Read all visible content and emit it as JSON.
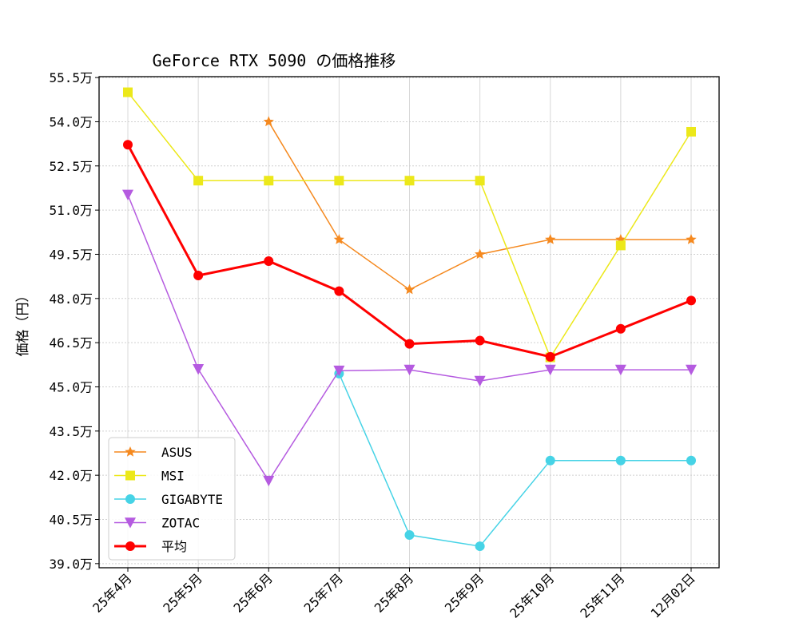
{
  "chart_data": {
    "type": "line",
    "title": "GeForce RTX 5090 の価格推移",
    "xlabel": "",
    "ylabel": "価格（円）",
    "categories": [
      "25年4月",
      "25年5月",
      "25年6月",
      "25年7月",
      "25年8月",
      "25年9月",
      "25年10月",
      "25年11月",
      "12月02日"
    ],
    "ylim": [
      38.86,
      55.53
    ],
    "yticks": [
      39.0,
      40.5,
      42.0,
      43.5,
      45.0,
      46.5,
      48.0,
      49.5,
      51.0,
      52.5,
      54.0,
      55.5
    ],
    "ytick_labels": [
      "39.0万",
      "40.5万",
      "42.0万",
      "43.5万",
      "45.0万",
      "46.5万",
      "48.0万",
      "49.5万",
      "51.0万",
      "52.5万",
      "54.0万",
      "55.5万"
    ],
    "y_unit": "万円",
    "grid": true,
    "legend_position": "lower-left",
    "series": [
      {
        "name": "ASUS",
        "color": "#f5891f",
        "marker": "star",
        "line_width": 1.5,
        "values": [
          null,
          null,
          54.0,
          50.0,
          48.3,
          49.5,
          50.0,
          50.0,
          50.0
        ]
      },
      {
        "name": "MSI",
        "color": "#ece81a",
        "marker": "square",
        "line_width": 1.5,
        "values": [
          55.0,
          52.0,
          52.0,
          52.0,
          52.0,
          52.0,
          46.0,
          49.8,
          53.66
        ]
      },
      {
        "name": "GIGABYTE",
        "color": "#46d3e6",
        "marker": "circle",
        "line_width": 1.5,
        "values": [
          null,
          null,
          null,
          45.45,
          39.97,
          39.59,
          42.5,
          42.5,
          42.5
        ]
      },
      {
        "name": "ZOTAC",
        "color": "#b55be0",
        "marker": "triangle-down",
        "line_width": 1.5,
        "values": [
          51.52,
          45.6,
          41.81,
          45.55,
          45.58,
          45.2,
          45.58,
          45.58,
          45.58
        ]
      },
      {
        "name": "平均",
        "color": "#ff0000",
        "marker": "circle",
        "line_width": 3,
        "values": [
          53.22,
          48.78,
          49.27,
          48.25,
          46.46,
          46.57,
          46.02,
          46.97,
          47.93
        ]
      }
    ]
  }
}
